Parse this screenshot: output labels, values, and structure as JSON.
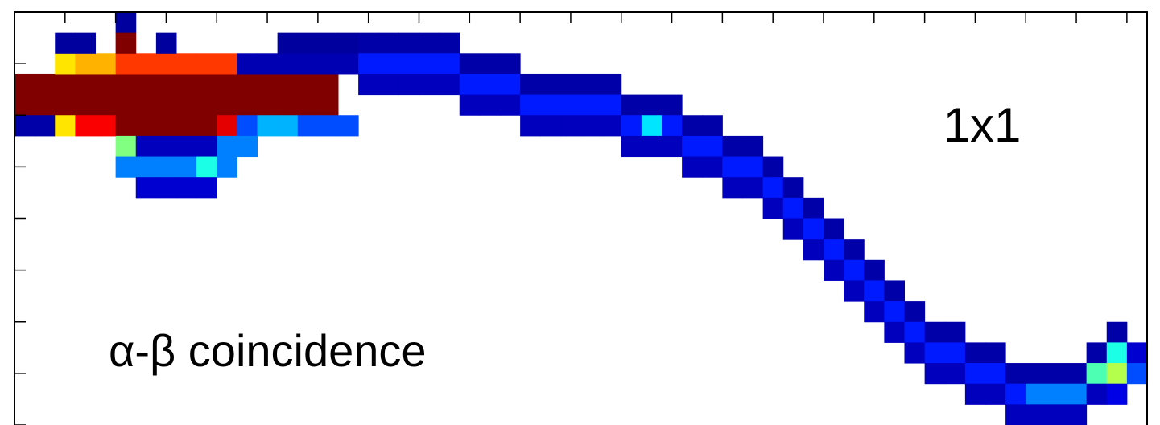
{
  "chart_data": {
    "type": "heatmap",
    "annotations": [
      "1x1",
      "α-β coincidence"
    ],
    "xlim": [
      0,
      56
    ],
    "ylim": [
      0,
      20
    ],
    "zlim": [
      0,
      100
    ],
    "xticks": [
      0,
      2.5,
      5,
      7.5,
      10,
      12.5,
      15,
      17.5,
      20,
      22.5,
      25,
      27.5,
      30,
      32.5,
      35,
      37.5,
      40,
      42.5,
      45,
      47.5,
      50,
      52.5,
      55
    ],
    "yticks": [
      0,
      2.5,
      5,
      7.5,
      10,
      12.5,
      15,
      17.5,
      20
    ],
    "colormap": "jet",
    "cells": [
      [
        0,
        16,
        150
      ],
      [
        1,
        16,
        150
      ],
      [
        2,
        16,
        150
      ],
      [
        3,
        16,
        150
      ],
      [
        4,
        16,
        150
      ],
      [
        5,
        16,
        150
      ],
      [
        6,
        16,
        150
      ],
      [
        7,
        16,
        150
      ],
      [
        8,
        16,
        150
      ],
      [
        9,
        16,
        150
      ],
      [
        10,
        16,
        150
      ],
      [
        11,
        16,
        150
      ],
      [
        12,
        16,
        150
      ],
      [
        13,
        16,
        150
      ],
      [
        14,
        16,
        150
      ],
      [
        15,
        16,
        150
      ],
      [
        0,
        15,
        150
      ],
      [
        1,
        15,
        150
      ],
      [
        2,
        15,
        150
      ],
      [
        3,
        15,
        150
      ],
      [
        4,
        15,
        150
      ],
      [
        5,
        15,
        150
      ],
      [
        6,
        15,
        150
      ],
      [
        7,
        15,
        150
      ],
      [
        8,
        15,
        150
      ],
      [
        9,
        15,
        150
      ],
      [
        10,
        15,
        150
      ],
      [
        11,
        15,
        150
      ],
      [
        12,
        15,
        150
      ],
      [
        13,
        15,
        150
      ],
      [
        14,
        15,
        150
      ],
      [
        15,
        15,
        150
      ],
      [
        2,
        17,
        65
      ],
      [
        3,
        17,
        70
      ],
      [
        4,
        17,
        70
      ],
      [
        5,
        17,
        82
      ],
      [
        6,
        17,
        82
      ],
      [
        7,
        17,
        82
      ],
      [
        8,
        17,
        82
      ],
      [
        9,
        17,
        82
      ],
      [
        10,
        17,
        82
      ],
      [
        11,
        17,
        5
      ],
      [
        12,
        17,
        5
      ],
      [
        13,
        17,
        5
      ],
      [
        14,
        17,
        5
      ],
      [
        15,
        17,
        5
      ],
      [
        16,
        17,
        5
      ],
      [
        0,
        14,
        4
      ],
      [
        1,
        14,
        4
      ],
      [
        2,
        14,
        65
      ],
      [
        3,
        14,
        88
      ],
      [
        4,
        14,
        88
      ],
      [
        5,
        14,
        100
      ],
      [
        6,
        14,
        100
      ],
      [
        7,
        14,
        100
      ],
      [
        8,
        14,
        100
      ],
      [
        9,
        14,
        100
      ],
      [
        10,
        14,
        90
      ],
      [
        11,
        14,
        20
      ],
      [
        12,
        14,
        30
      ],
      [
        13,
        14,
        30
      ],
      [
        14,
        14,
        20
      ],
      [
        15,
        14,
        20
      ],
      [
        16,
        14,
        20
      ],
      [
        5,
        13,
        50
      ],
      [
        6,
        13,
        6
      ],
      [
        7,
        13,
        6
      ],
      [
        8,
        13,
        6
      ],
      [
        9,
        13,
        6
      ],
      [
        10,
        13,
        25
      ],
      [
        11,
        13,
        25
      ],
      [
        5,
        12,
        25
      ],
      [
        6,
        12,
        25
      ],
      [
        7,
        12,
        25
      ],
      [
        8,
        12,
        25
      ],
      [
        9,
        12,
        40
      ],
      [
        10,
        12,
        25
      ],
      [
        6,
        11,
        8
      ],
      [
        7,
        11,
        8
      ],
      [
        8,
        11,
        8
      ],
      [
        9,
        11,
        8
      ],
      [
        2,
        18,
        3
      ],
      [
        3,
        18,
        3
      ],
      [
        5,
        19,
        3
      ],
      [
        5,
        18,
        100
      ],
      [
        7,
        18,
        3
      ],
      [
        13,
        18,
        3
      ],
      [
        14,
        18,
        3
      ],
      [
        15,
        18,
        3
      ],
      [
        16,
        18,
        3
      ],
      [
        17,
        18,
        4
      ],
      [
        17,
        17,
        15
      ],
      [
        17,
        16,
        6
      ],
      [
        18,
        18,
        4
      ],
      [
        18,
        17,
        15
      ],
      [
        18,
        16,
        6
      ],
      [
        19,
        18,
        4
      ],
      [
        19,
        17,
        15
      ],
      [
        19,
        16,
        6
      ],
      [
        20,
        18,
        4
      ],
      [
        20,
        17,
        15
      ],
      [
        20,
        16,
        6
      ],
      [
        21,
        18,
        4
      ],
      [
        21,
        17,
        15
      ],
      [
        21,
        16,
        6
      ],
      [
        22,
        17,
        4
      ],
      [
        22,
        16,
        15
      ],
      [
        22,
        15,
        6
      ],
      [
        23,
        17,
        4
      ],
      [
        23,
        16,
        15
      ],
      [
        23,
        15,
        6
      ],
      [
        24,
        17,
        4
      ],
      [
        24,
        16,
        15
      ],
      [
        24,
        15,
        6
      ],
      [
        25,
        16,
        4
      ],
      [
        25,
        15,
        15
      ],
      [
        25,
        14,
        6
      ],
      [
        26,
        16,
        4
      ],
      [
        26,
        15,
        15
      ],
      [
        26,
        14,
        6
      ],
      [
        27,
        16,
        4
      ],
      [
        27,
        15,
        15
      ],
      [
        27,
        14,
        6
      ],
      [
        28,
        16,
        4
      ],
      [
        28,
        15,
        15
      ],
      [
        28,
        14,
        6
      ],
      [
        29,
        16,
        4
      ],
      [
        29,
        15,
        15
      ],
      [
        29,
        14,
        6
      ],
      [
        30,
        15,
        4
      ],
      [
        30,
        14,
        15
      ],
      [
        30,
        13,
        6
      ],
      [
        31,
        15,
        4
      ],
      [
        31,
        14,
        35
      ],
      [
        31,
        13,
        6
      ],
      [
        32,
        15,
        4
      ],
      [
        32,
        14,
        15
      ],
      [
        32,
        13,
        6
      ],
      [
        33,
        14,
        4
      ],
      [
        33,
        13,
        15
      ],
      [
        33,
        12,
        6
      ],
      [
        34,
        14,
        4
      ],
      [
        34,
        13,
        15
      ],
      [
        34,
        12,
        6
      ],
      [
        35,
        13,
        4
      ],
      [
        35,
        12,
        15
      ],
      [
        35,
        11,
        6
      ],
      [
        36,
        13,
        4
      ],
      [
        36,
        12,
        15
      ],
      [
        36,
        11,
        6
      ],
      [
        37,
        12,
        4
      ],
      [
        37,
        11,
        15
      ],
      [
        37,
        10,
        6
      ],
      [
        38,
        11,
        4
      ],
      [
        38,
        10,
        15
      ],
      [
        38,
        9,
        6
      ],
      [
        39,
        10,
        4
      ],
      [
        39,
        9,
        15
      ],
      [
        39,
        8,
        6
      ],
      [
        40,
        9,
        4
      ],
      [
        40,
        8,
        15
      ],
      [
        40,
        7,
        6
      ],
      [
        41,
        8,
        4
      ],
      [
        41,
        7,
        15
      ],
      [
        41,
        6,
        6
      ],
      [
        42,
        7,
        4
      ],
      [
        42,
        6,
        15
      ],
      [
        42,
        5,
        6
      ],
      [
        43,
        6,
        4
      ],
      [
        43,
        5,
        15
      ],
      [
        43,
        4,
        6
      ],
      [
        44,
        5,
        4
      ],
      [
        44,
        4,
        15
      ],
      [
        44,
        3,
        6
      ],
      [
        45,
        4,
        4
      ],
      [
        45,
        3,
        15
      ],
      [
        45,
        2,
        6
      ],
      [
        46,
        4,
        4
      ],
      [
        46,
        3,
        15
      ],
      [
        46,
        2,
        6
      ],
      [
        47,
        3,
        4
      ],
      [
        47,
        2,
        15
      ],
      [
        47,
        1,
        6
      ],
      [
        48,
        3,
        4
      ],
      [
        48,
        2,
        15
      ],
      [
        48,
        1,
        6
      ],
      [
        49,
        2,
        4
      ],
      [
        49,
        1,
        15
      ],
      [
        49,
        0,
        6
      ],
      [
        50,
        2,
        4
      ],
      [
        50,
        1,
        25
      ],
      [
        50,
        0,
        6
      ],
      [
        51,
        2,
        4
      ],
      [
        51,
        1,
        25
      ],
      [
        51,
        0,
        6
      ],
      [
        52,
        2,
        4
      ],
      [
        52,
        1,
        25
      ],
      [
        52,
        0,
        6
      ],
      [
        53,
        3,
        4
      ],
      [
        53,
        2,
        45
      ],
      [
        53,
        1,
        6
      ],
      [
        54,
        4,
        4
      ],
      [
        54,
        3,
        40
      ],
      [
        54,
        2,
        55
      ],
      [
        54,
        1,
        10
      ],
      [
        55,
        3,
        8
      ],
      [
        55,
        2,
        20
      ]
    ]
  }
}
